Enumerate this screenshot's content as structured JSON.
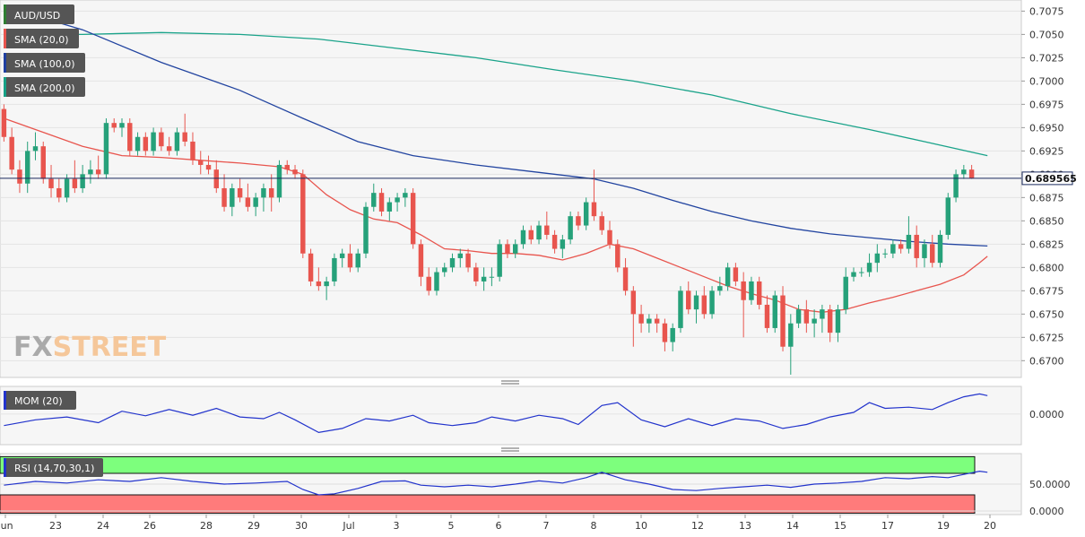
{
  "symbol": "AUD/USD",
  "legend": {
    "items": [
      {
        "label": "AUD/USD",
        "color": "#2e7d32"
      },
      {
        "label": "SMA (20,0)",
        "color": "#e8554e"
      },
      {
        "label": "SMA (100,0)",
        "color": "#1f3fa0"
      },
      {
        "label": "SMA (200,0)",
        "color": "#16a085"
      }
    ]
  },
  "watermark": {
    "part1": "FX",
    "part2": "STREET"
  },
  "last_price": "0.689565",
  "colors": {
    "up": "#26a17a",
    "down": "#e8554e",
    "sma20": "#e8554e",
    "sma100": "#2244a0",
    "sma200": "#1aa38a",
    "mom": "#2233cc",
    "rsi": "#2233cc",
    "rsi_overbought": "#7dff7d",
    "rsi_oversold": "#ff7b7b"
  },
  "momentum": {
    "label": "MOM (20)",
    "tick": "0.0000"
  },
  "rsi": {
    "label": "RSI (14,70,30,1)",
    "ticks": [
      "50.0000",
      "0.0000"
    ]
  },
  "chart_data": {
    "type": "candlestick",
    "title": "",
    "y_ticks": [
      "0.7075",
      "0.7050",
      "0.7025",
      "0.7000",
      "0.6975",
      "0.6950",
      "0.6925",
      "0.6900",
      "0.6875",
      "0.6850",
      "0.6825",
      "0.6800",
      "0.6775",
      "0.6750",
      "0.6725",
      "0.6700"
    ],
    "ylim": [
      0.6683,
      0.7085
    ],
    "x_labels": [
      "Jun",
      "23",
      "24",
      "26",
      "28",
      "29",
      "30",
      "Jul",
      "3",
      "5",
      "6",
      "7",
      "8",
      "10",
      "12",
      "13",
      "14",
      "15",
      "17",
      "19",
      "20"
    ],
    "candles": [
      [
        0.697,
        0.6975,
        0.6935,
        0.694
      ],
      [
        0.694,
        0.695,
        0.69,
        0.6905
      ],
      [
        0.6905,
        0.6915,
        0.688,
        0.689
      ],
      [
        0.689,
        0.6935,
        0.688,
        0.6925
      ],
      [
        0.6925,
        0.6945,
        0.6915,
        0.693
      ],
      [
        0.693,
        0.6935,
        0.689,
        0.6895
      ],
      [
        0.6895,
        0.691,
        0.6875,
        0.6885
      ],
      [
        0.6885,
        0.6895,
        0.687,
        0.6875
      ],
      [
        0.6875,
        0.69,
        0.687,
        0.6895
      ],
      [
        0.6895,
        0.6915,
        0.688,
        0.6885
      ],
      [
        0.6885,
        0.691,
        0.688,
        0.69
      ],
      [
        0.69,
        0.6915,
        0.689,
        0.6905
      ],
      [
        0.6905,
        0.692,
        0.6895,
        0.69
      ],
      [
        0.69,
        0.696,
        0.6895,
        0.6955
      ],
      [
        0.6955,
        0.696,
        0.6945,
        0.695
      ],
      [
        0.695,
        0.696,
        0.694,
        0.6955
      ],
      [
        0.6955,
        0.696,
        0.692,
        0.6925
      ],
      [
        0.6925,
        0.6945,
        0.692,
        0.694
      ],
      [
        0.694,
        0.6945,
        0.692,
        0.6925
      ],
      [
        0.6925,
        0.695,
        0.692,
        0.6945
      ],
      [
        0.6945,
        0.695,
        0.6925,
        0.693
      ],
      [
        0.693,
        0.694,
        0.692,
        0.6925
      ],
      [
        0.6925,
        0.695,
        0.692,
        0.6945
      ],
      [
        0.6945,
        0.6965,
        0.693,
        0.6935
      ],
      [
        0.6935,
        0.6945,
        0.691,
        0.6915
      ],
      [
        0.6915,
        0.6925,
        0.69,
        0.691
      ],
      [
        0.691,
        0.692,
        0.69,
        0.6905
      ],
      [
        0.6905,
        0.6915,
        0.688,
        0.6885
      ],
      [
        0.6885,
        0.69,
        0.686,
        0.6865
      ],
      [
        0.6865,
        0.689,
        0.6855,
        0.6885
      ],
      [
        0.6885,
        0.6895,
        0.687,
        0.6875
      ],
      [
        0.6875,
        0.689,
        0.686,
        0.6865
      ],
      [
        0.6865,
        0.688,
        0.6855,
        0.6875
      ],
      [
        0.6875,
        0.689,
        0.686,
        0.6885
      ],
      [
        0.6885,
        0.69,
        0.686,
        0.6875
      ],
      [
        0.6875,
        0.6915,
        0.687,
        0.691
      ],
      [
        0.691,
        0.6915,
        0.69,
        0.6905
      ],
      [
        0.6905,
        0.691,
        0.6895,
        0.69
      ],
      [
        0.69,
        0.6905,
        0.681,
        0.6815
      ],
      [
        0.6815,
        0.682,
        0.678,
        0.6785
      ],
      [
        0.6785,
        0.68,
        0.6775,
        0.678
      ],
      [
        0.678,
        0.679,
        0.6765,
        0.6785
      ],
      [
        0.6785,
        0.6815,
        0.678,
        0.681
      ],
      [
        0.681,
        0.682,
        0.68,
        0.6815
      ],
      [
        0.6815,
        0.6825,
        0.6795,
        0.68
      ],
      [
        0.68,
        0.682,
        0.6795,
        0.6815
      ],
      [
        0.6815,
        0.687,
        0.681,
        0.6865
      ],
      [
        0.6865,
        0.689,
        0.686,
        0.688
      ],
      [
        0.688,
        0.6885,
        0.6855,
        0.686
      ],
      [
        0.686,
        0.6875,
        0.685,
        0.687
      ],
      [
        0.687,
        0.688,
        0.686,
        0.6875
      ],
      [
        0.6875,
        0.6885,
        0.6865,
        0.688
      ],
      [
        0.688,
        0.6885,
        0.682,
        0.6825
      ],
      [
        0.6825,
        0.683,
        0.678,
        0.679
      ],
      [
        0.679,
        0.68,
        0.677,
        0.6775
      ],
      [
        0.6775,
        0.68,
        0.677,
        0.6795
      ],
      [
        0.6795,
        0.6805,
        0.679,
        0.68
      ],
      [
        0.68,
        0.6815,
        0.6795,
        0.681
      ],
      [
        0.681,
        0.682,
        0.68,
        0.6815
      ],
      [
        0.6815,
        0.682,
        0.6795,
        0.68
      ],
      [
        0.68,
        0.6805,
        0.678,
        0.6785
      ],
      [
        0.6785,
        0.68,
        0.6775,
        0.679
      ],
      [
        0.679,
        0.68,
        0.678,
        0.679
      ],
      [
        0.679,
        0.683,
        0.6785,
        0.6825
      ],
      [
        0.6825,
        0.683,
        0.681,
        0.6815
      ],
      [
        0.6815,
        0.683,
        0.681,
        0.6825
      ],
      [
        0.6825,
        0.6845,
        0.682,
        0.684
      ],
      [
        0.684,
        0.6845,
        0.6825,
        0.683
      ],
      [
        0.683,
        0.685,
        0.6825,
        0.6845
      ],
      [
        0.6845,
        0.686,
        0.683,
        0.6835
      ],
      [
        0.6835,
        0.684,
        0.6815,
        0.682
      ],
      [
        0.682,
        0.6835,
        0.681,
        0.683
      ],
      [
        0.683,
        0.686,
        0.6825,
        0.6855
      ],
      [
        0.6855,
        0.686,
        0.684,
        0.6845
      ],
      [
        0.6845,
        0.6875,
        0.684,
        0.687
      ],
      [
        0.687,
        0.6905,
        0.685,
        0.6855
      ],
      [
        0.6855,
        0.686,
        0.6835,
        0.684
      ],
      [
        0.684,
        0.685,
        0.682,
        0.6825
      ],
      [
        0.6825,
        0.683,
        0.6795,
        0.68
      ],
      [
        0.68,
        0.681,
        0.677,
        0.6775
      ],
      [
        0.6775,
        0.678,
        0.6715,
        0.675
      ],
      [
        0.675,
        0.676,
        0.673,
        0.674
      ],
      [
        0.674,
        0.675,
        0.673,
        0.6745
      ],
      [
        0.6745,
        0.675,
        0.673,
        0.674
      ],
      [
        0.674,
        0.6745,
        0.671,
        0.672
      ],
      [
        0.672,
        0.674,
        0.671,
        0.6735
      ],
      [
        0.6735,
        0.678,
        0.673,
        0.6775
      ],
      [
        0.6775,
        0.6785,
        0.675,
        0.6755
      ],
      [
        0.6755,
        0.6775,
        0.674,
        0.677
      ],
      [
        0.677,
        0.678,
        0.6745,
        0.675
      ],
      [
        0.675,
        0.678,
        0.6745,
        0.6775
      ],
      [
        0.6775,
        0.679,
        0.677,
        0.678
      ],
      [
        0.678,
        0.6805,
        0.6775,
        0.68
      ],
      [
        0.68,
        0.6805,
        0.678,
        0.6785
      ],
      [
        0.6785,
        0.6795,
        0.6725,
        0.6765
      ],
      [
        0.6765,
        0.679,
        0.676,
        0.6785
      ],
      [
        0.6785,
        0.679,
        0.6755,
        0.676
      ],
      [
        0.676,
        0.677,
        0.673,
        0.6735
      ],
      [
        0.6735,
        0.6775,
        0.673,
        0.677
      ],
      [
        0.677,
        0.678,
        0.671,
        0.6715
      ],
      [
        0.6715,
        0.675,
        0.6685,
        0.674
      ],
      [
        0.674,
        0.676,
        0.6735,
        0.6755
      ],
      [
        0.6755,
        0.6765,
        0.673,
        0.674
      ],
      [
        0.674,
        0.6755,
        0.6725,
        0.6745
      ],
      [
        0.6745,
        0.676,
        0.673,
        0.6755
      ],
      [
        0.6755,
        0.676,
        0.672,
        0.673
      ],
      [
        0.673,
        0.676,
        0.672,
        0.6755
      ],
      [
        0.6755,
        0.68,
        0.675,
        0.679
      ],
      [
        0.679,
        0.68,
        0.6785,
        0.6795
      ],
      [
        0.6795,
        0.68,
        0.679,
        0.6795
      ],
      [
        0.6795,
        0.6815,
        0.679,
        0.6805
      ],
      [
        0.6805,
        0.6825,
        0.6795,
        0.6815
      ],
      [
        0.6815,
        0.682,
        0.681,
        0.6815
      ],
      [
        0.6815,
        0.683,
        0.681,
        0.6825
      ],
      [
        0.6825,
        0.683,
        0.6815,
        0.682
      ],
      [
        0.682,
        0.6855,
        0.6815,
        0.6835
      ],
      [
        0.6835,
        0.6845,
        0.68,
        0.681
      ],
      [
        0.681,
        0.683,
        0.68,
        0.6825
      ],
      [
        0.6825,
        0.6835,
        0.68,
        0.6805
      ],
      [
        0.6805,
        0.684,
        0.68,
        0.6835
      ],
      [
        0.6835,
        0.688,
        0.683,
        0.6875
      ],
      [
        0.6875,
        0.6905,
        0.687,
        0.69
      ],
      [
        0.69,
        0.691,
        0.6895,
        0.6905
      ],
      [
        0.6905,
        0.691,
        0.6895,
        0.6896
      ]
    ],
    "sma20": [
      [
        0,
        0.696
      ],
      [
        5,
        0.6945
      ],
      [
        10,
        0.693
      ],
      [
        15,
        0.692
      ],
      [
        20,
        0.6918
      ],
      [
        25,
        0.6915
      ],
      [
        30,
        0.6912
      ],
      [
        35,
        0.6908
      ],
      [
        38,
        0.69
      ],
      [
        41,
        0.6878
      ],
      [
        44,
        0.6862
      ],
      [
        47,
        0.6852
      ],
      [
        50,
        0.6848
      ],
      [
        53,
        0.6835
      ],
      [
        56,
        0.682
      ],
      [
        59,
        0.6818
      ],
      [
        62,
        0.6815
      ],
      [
        65,
        0.6815
      ],
      [
        68,
        0.6813
      ],
      [
        71,
        0.6808
      ],
      [
        74,
        0.6815
      ],
      [
        77,
        0.6825
      ],
      [
        80,
        0.682
      ],
      [
        83,
        0.681
      ],
      [
        86,
        0.68
      ],
      [
        89,
        0.679
      ],
      [
        92,
        0.678
      ],
      [
        95,
        0.6772
      ],
      [
        98,
        0.6765
      ],
      [
        101,
        0.6755
      ],
      [
        104,
        0.6752
      ],
      [
        107,
        0.6755
      ],
      [
        110,
        0.6762
      ],
      [
        113,
        0.6768
      ],
      [
        116,
        0.6775
      ],
      [
        119,
        0.6782
      ],
      [
        122,
        0.6792
      ],
      [
        124,
        0.6805
      ],
      [
        125,
        0.6812
      ]
    ],
    "sma100": [
      [
        0,
        0.708
      ],
      [
        10,
        0.7055
      ],
      [
        20,
        0.702
      ],
      [
        30,
        0.699
      ],
      [
        38,
        0.696
      ],
      [
        45,
        0.6935
      ],
      [
        52,
        0.692
      ],
      [
        60,
        0.691
      ],
      [
        68,
        0.6902
      ],
      [
        75,
        0.6895
      ],
      [
        80,
        0.6885
      ],
      [
        85,
        0.6872
      ],
      [
        90,
        0.686
      ],
      [
        95,
        0.685
      ],
      [
        100,
        0.6842
      ],
      [
        105,
        0.6836
      ],
      [
        110,
        0.6832
      ],
      [
        115,
        0.6828
      ],
      [
        120,
        0.6825
      ],
      [
        125,
        0.6823
      ]
    ],
    "sma200": [
      [
        0,
        0.705
      ],
      [
        10,
        0.705
      ],
      [
        20,
        0.7052
      ],
      [
        30,
        0.705
      ],
      [
        40,
        0.7045
      ],
      [
        50,
        0.7035
      ],
      [
        60,
        0.7025
      ],
      [
        70,
        0.7012
      ],
      [
        80,
        0.7
      ],
      [
        90,
        0.6985
      ],
      [
        100,
        0.6965
      ],
      [
        110,
        0.6948
      ],
      [
        117,
        0.6935
      ],
      [
        125,
        0.692
      ]
    ],
    "momentum_values": [
      [
        0,
        -0.002
      ],
      [
        4,
        -0.001
      ],
      [
        8,
        -0.0005
      ],
      [
        12,
        -0.0015
      ],
      [
        15,
        0.0005
      ],
      [
        18,
        -0.0003
      ],
      [
        21,
        0.0008
      ],
      [
        24,
        -0.0002
      ],
      [
        27,
        0.001
      ],
      [
        30,
        -0.0005
      ],
      [
        33,
        -0.0008
      ],
      [
        35,
        0.0003
      ],
      [
        37,
        -0.001
      ],
      [
        40,
        -0.0032
      ],
      [
        43,
        -0.0025
      ],
      [
        46,
        -0.0008
      ],
      [
        49,
        -0.0012
      ],
      [
        52,
        -0.0002
      ],
      [
        54,
        -0.0015
      ],
      [
        57,
        -0.002
      ],
      [
        60,
        -0.0015
      ],
      [
        62,
        -0.0005
      ],
      [
        65,
        -0.0012
      ],
      [
        68,
        -0.0002
      ],
      [
        71,
        -0.0008
      ],
      [
        73,
        -0.0018
      ],
      [
        76,
        0.0015
      ],
      [
        78,
        0.002
      ],
      [
        81,
        -0.001
      ],
      [
        84,
        -0.0022
      ],
      [
        87,
        -0.0008
      ],
      [
        90,
        -0.002
      ],
      [
        93,
        -0.0008
      ],
      [
        96,
        -0.0012
      ],
      [
        99,
        -0.0025
      ],
      [
        102,
        -0.0018
      ],
      [
        105,
        -0.0005
      ],
      [
        108,
        0.0003
      ],
      [
        110,
        0.002
      ],
      [
        112,
        0.001
      ],
      [
        115,
        0.0012
      ],
      [
        118,
        0.0008
      ],
      [
        120,
        0.002
      ],
      [
        122,
        0.003
      ],
      [
        124,
        0.0035
      ],
      [
        125,
        0.0032
      ]
    ],
    "momentum_ylim": [
      -0.005,
      0.0045
    ],
    "rsi_values": [
      [
        0,
        48
      ],
      [
        4,
        55
      ],
      [
        8,
        52
      ],
      [
        12,
        58
      ],
      [
        16,
        55
      ],
      [
        20,
        62
      ],
      [
        24,
        55
      ],
      [
        28,
        50
      ],
      [
        32,
        52
      ],
      [
        36,
        55
      ],
      [
        38,
        40
      ],
      [
        40,
        30
      ],
      [
        42,
        32
      ],
      [
        45,
        42
      ],
      [
        48,
        55
      ],
      [
        51,
        56
      ],
      [
        53,
        48
      ],
      [
        56,
        45
      ],
      [
        59,
        48
      ],
      [
        62,
        45
      ],
      [
        65,
        50
      ],
      [
        68,
        56
      ],
      [
        71,
        52
      ],
      [
        74,
        62
      ],
      [
        76,
        72
      ],
      [
        79,
        58
      ],
      [
        82,
        50
      ],
      [
        85,
        40
      ],
      [
        88,
        38
      ],
      [
        91,
        42
      ],
      [
        94,
        45
      ],
      [
        97,
        48
      ],
      [
        100,
        44
      ],
      [
        103,
        50
      ],
      [
        106,
        52
      ],
      [
        109,
        55
      ],
      [
        112,
        62
      ],
      [
        115,
        60
      ],
      [
        118,
        64
      ],
      [
        120,
        62
      ],
      [
        122,
        68
      ],
      [
        124,
        74
      ],
      [
        125,
        72
      ]
    ],
    "rsi_ylim": [
      -5,
      105
    ]
  }
}
